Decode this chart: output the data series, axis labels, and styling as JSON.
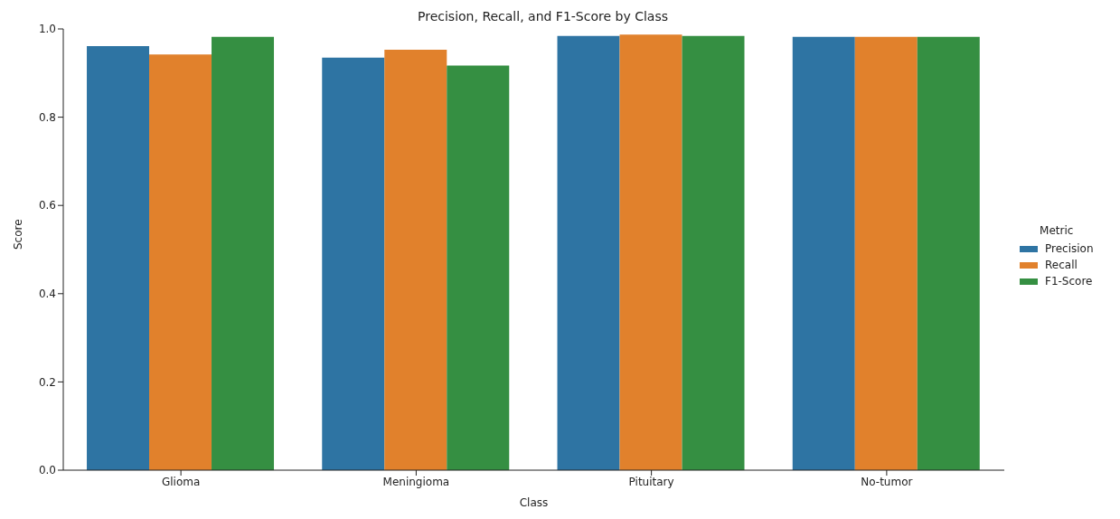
{
  "chart_data": {
    "type": "bar",
    "title": "Precision, Recall, and F1-Score by Class",
    "xlabel": "Class",
    "ylabel": "Score",
    "legend_title": "Metric",
    "categories": [
      "Glioma",
      "Meningioma",
      "Pituitary",
      "No-tumor"
    ],
    "series": [
      {
        "name": "Precision",
        "color": "#2e74a3",
        "values": [
          0.961,
          0.935,
          0.984,
          0.982
        ]
      },
      {
        "name": "Recall",
        "color": "#e1812c",
        "values": [
          0.942,
          0.953,
          0.987,
          0.982
        ]
      },
      {
        "name": "F1-Score",
        "color": "#358f42",
        "values": [
          0.982,
          0.917,
          0.984,
          0.982
        ]
      }
    ],
    "ylim": [
      0,
      1
    ],
    "yticks": [
      {
        "value": 0,
        "label": "0.0"
      },
      0.2,
      0.4,
      0.6,
      0.8,
      {
        "value": 1,
        "label": "1.0"
      }
    ],
    "grid": false,
    "legend": "right"
  }
}
